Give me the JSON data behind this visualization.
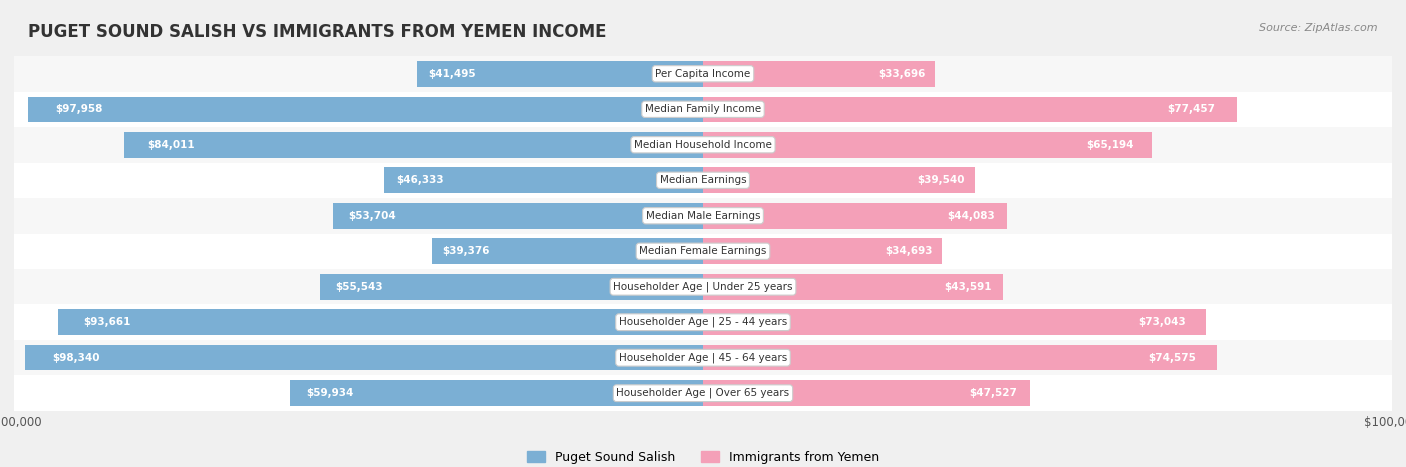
{
  "title": "PUGET SOUND SALISH VS IMMIGRANTS FROM YEMEN INCOME",
  "source": "Source: ZipAtlas.com",
  "categories": [
    "Per Capita Income",
    "Median Family Income",
    "Median Household Income",
    "Median Earnings",
    "Median Male Earnings",
    "Median Female Earnings",
    "Householder Age | Under 25 years",
    "Householder Age | 25 - 44 years",
    "Householder Age | 45 - 64 years",
    "Householder Age | Over 65 years"
  ],
  "salish_values": [
    41495,
    97958,
    84011,
    46333,
    53704,
    39376,
    55543,
    93661,
    98340,
    59934
  ],
  "yemen_values": [
    33696,
    77457,
    65194,
    39540,
    44083,
    34693,
    43591,
    73043,
    74575,
    47527
  ],
  "salish_labels": [
    "$41,495",
    "$97,958",
    "$84,011",
    "$46,333",
    "$53,704",
    "$39,376",
    "$55,543",
    "$93,661",
    "$98,340",
    "$59,934"
  ],
  "yemen_labels": [
    "$33,696",
    "$77,457",
    "$65,194",
    "$39,540",
    "$44,083",
    "$34,693",
    "$43,591",
    "$73,043",
    "$74,575",
    "$47,527"
  ],
  "salish_color": "#7bafd4",
  "salish_color_dark": "#5b9fc4",
  "yemen_color": "#f4a0b8",
  "yemen_color_dark": "#e8809a",
  "max_value": 100000,
  "background_color": "#f0f0f0",
  "row_bg_light": "#f7f7f7",
  "row_bg_white": "#ffffff",
  "label_color_inside": "#ffffff",
  "label_color_outside": "#555555"
}
